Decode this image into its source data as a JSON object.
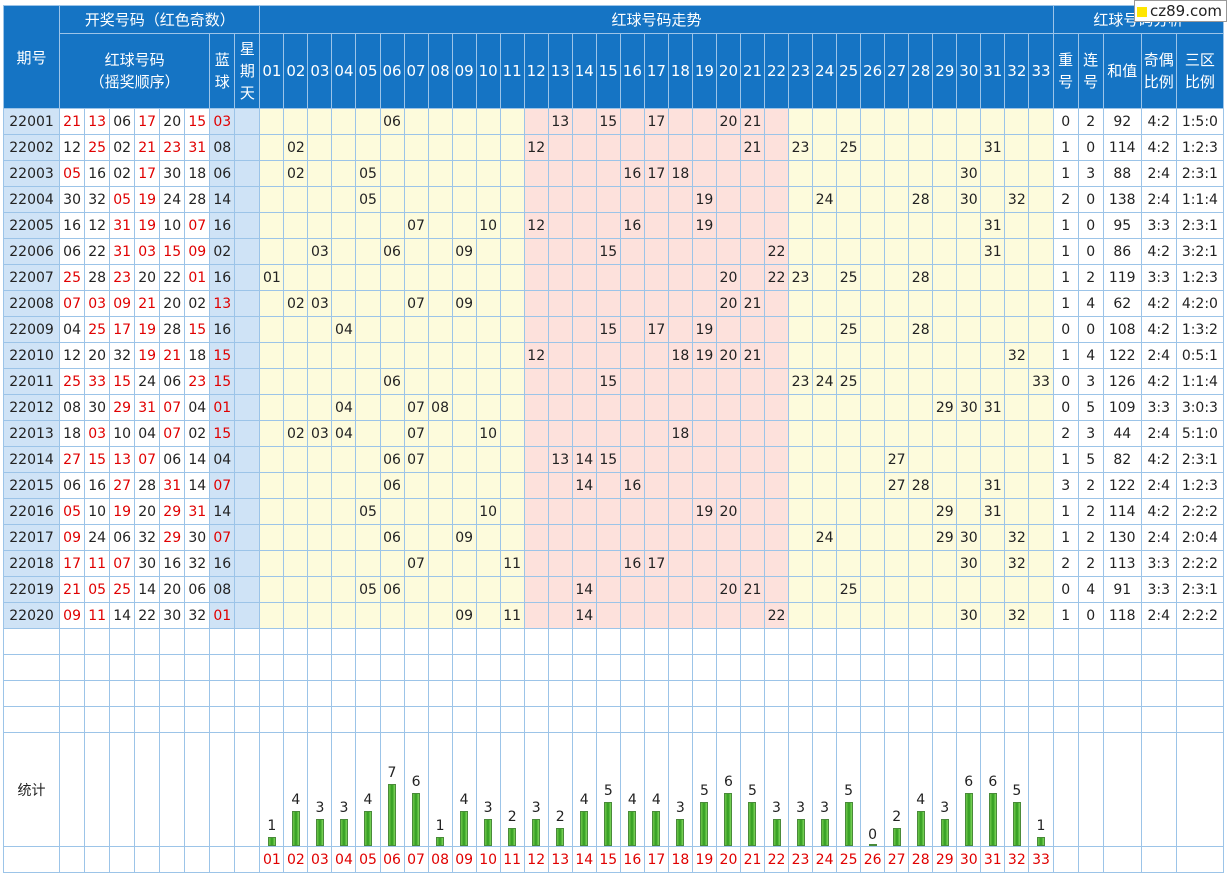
{
  "watermark": "cz89.com",
  "header": {
    "draw_group": "开奖号码（红色奇数）",
    "trend_group": "红球号码走势",
    "analysis_group": "红球号码分析",
    "period": "期号",
    "red_label_1": "红球号码",
    "red_label_2": "（摇奖顺序）",
    "blue_label_1": "蓝",
    "blue_label_2": "球",
    "week_1": "星",
    "week_2": "期",
    "week_3": "天",
    "repeat_1": "重",
    "repeat_2": "号",
    "consec_1": "连",
    "consec_2": "号",
    "sum": "和值",
    "oddeven_1": "奇偶",
    "oddeven_2": "比例",
    "zone_1": "三区",
    "zone_2": "比例",
    "numbers": [
      "01",
      "02",
      "03",
      "04",
      "05",
      "06",
      "07",
      "08",
      "09",
      "10",
      "11",
      "12",
      "13",
      "14",
      "15",
      "16",
      "17",
      "18",
      "19",
      "20",
      "21",
      "22",
      "23",
      "24",
      "25",
      "26",
      "27",
      "28",
      "29",
      "30",
      "31",
      "32",
      "33"
    ]
  },
  "rows": [
    {
      "period": "22001",
      "reds": [
        "21",
        "13",
        "06",
        "17",
        "20",
        "15"
      ],
      "blue": "03",
      "repeat": "0",
      "consec": "2",
      "sum": "92",
      "oddeven": "4:2",
      "zone": "1:5:0"
    },
    {
      "period": "22002",
      "reds": [
        "12",
        "25",
        "02",
        "21",
        "23",
        "31"
      ],
      "blue": "08",
      "repeat": "1",
      "consec": "0",
      "sum": "114",
      "oddeven": "4:2",
      "zone": "1:2:3"
    },
    {
      "period": "22003",
      "reds": [
        "05",
        "16",
        "02",
        "17",
        "30",
        "18"
      ],
      "blue": "06",
      "repeat": "1",
      "consec": "3",
      "sum": "88",
      "oddeven": "2:4",
      "zone": "2:3:1"
    },
    {
      "period": "22004",
      "reds": [
        "30",
        "32",
        "05",
        "19",
        "24",
        "28"
      ],
      "blue": "14",
      "repeat": "2",
      "consec": "0",
      "sum": "138",
      "oddeven": "2:4",
      "zone": "1:1:4"
    },
    {
      "period": "22005",
      "reds": [
        "16",
        "12",
        "31",
        "19",
        "10",
        "07"
      ],
      "blue": "16",
      "repeat": "1",
      "consec": "0",
      "sum": "95",
      "oddeven": "3:3",
      "zone": "2:3:1"
    },
    {
      "period": "22006",
      "reds": [
        "06",
        "22",
        "31",
        "03",
        "15",
        "09"
      ],
      "blue": "02",
      "repeat": "1",
      "consec": "0",
      "sum": "86",
      "oddeven": "4:2",
      "zone": "3:2:1"
    },
    {
      "period": "22007",
      "reds": [
        "25",
        "28",
        "23",
        "20",
        "22",
        "01"
      ],
      "blue": "16",
      "repeat": "1",
      "consec": "2",
      "sum": "119",
      "oddeven": "3:3",
      "zone": "1:2:3"
    },
    {
      "period": "22008",
      "reds": [
        "07",
        "03",
        "09",
        "21",
        "20",
        "02"
      ],
      "blue": "13",
      "repeat": "1",
      "consec": "4",
      "sum": "62",
      "oddeven": "4:2",
      "zone": "4:2:0"
    },
    {
      "period": "22009",
      "reds": [
        "04",
        "25",
        "17",
        "19",
        "28",
        "15"
      ],
      "blue": "16",
      "repeat": "0",
      "consec": "0",
      "sum": "108",
      "oddeven": "4:2",
      "zone": "1:3:2"
    },
    {
      "period": "22010",
      "reds": [
        "12",
        "20",
        "32",
        "19",
        "21",
        "18"
      ],
      "blue": "15",
      "repeat": "1",
      "consec": "4",
      "sum": "122",
      "oddeven": "2:4",
      "zone": "0:5:1"
    },
    {
      "period": "22011",
      "reds": [
        "25",
        "33",
        "15",
        "24",
        "06",
        "23"
      ],
      "blue": "15",
      "repeat": "0",
      "consec": "3",
      "sum": "126",
      "oddeven": "4:2",
      "zone": "1:1:4"
    },
    {
      "period": "22012",
      "reds": [
        "08",
        "30",
        "29",
        "31",
        "07",
        "04"
      ],
      "blue": "01",
      "repeat": "0",
      "consec": "5",
      "sum": "109",
      "oddeven": "3:3",
      "zone": "3:0:3"
    },
    {
      "period": "22013",
      "reds": [
        "18",
        "03",
        "10",
        "04",
        "07",
        "02"
      ],
      "blue": "15",
      "repeat": "2",
      "consec": "3",
      "sum": "44",
      "oddeven": "2:4",
      "zone": "5:1:0"
    },
    {
      "period": "22014",
      "reds": [
        "27",
        "15",
        "13",
        "07",
        "06",
        "14"
      ],
      "blue": "04",
      "repeat": "1",
      "consec": "5",
      "sum": "82",
      "oddeven": "4:2",
      "zone": "2:3:1"
    },
    {
      "period": "22015",
      "reds": [
        "06",
        "16",
        "27",
        "28",
        "31",
        "14"
      ],
      "blue": "07",
      "repeat": "3",
      "consec": "2",
      "sum": "122",
      "oddeven": "2:4",
      "zone": "1:2:3"
    },
    {
      "period": "22016",
      "reds": [
        "05",
        "10",
        "19",
        "20",
        "29",
        "31"
      ],
      "blue": "14",
      "repeat": "1",
      "consec": "2",
      "sum": "114",
      "oddeven": "4:2",
      "zone": "2:2:2"
    },
    {
      "period": "22017",
      "reds": [
        "09",
        "24",
        "06",
        "32",
        "29",
        "30"
      ],
      "blue": "07",
      "repeat": "1",
      "consec": "2",
      "sum": "130",
      "oddeven": "2:4",
      "zone": "2:0:4"
    },
    {
      "period": "22018",
      "reds": [
        "17",
        "11",
        "07",
        "30",
        "16",
        "32"
      ],
      "blue": "16",
      "repeat": "2",
      "consec": "2",
      "sum": "113",
      "oddeven": "3:3",
      "zone": "2:2:2"
    },
    {
      "period": "22019",
      "reds": [
        "21",
        "05",
        "25",
        "14",
        "20",
        "06"
      ],
      "blue": "08",
      "repeat": "0",
      "consec": "4",
      "sum": "91",
      "oddeven": "3:3",
      "zone": "2:3:1"
    },
    {
      "period": "22020",
      "reds": [
        "09",
        "11",
        "14",
        "22",
        "30",
        "32"
      ],
      "blue": "01",
      "repeat": "1",
      "consec": "0",
      "sum": "118",
      "oddeven": "2:4",
      "zone": "2:2:2"
    }
  ],
  "stats": {
    "label": "统计",
    "counts": [
      1,
      4,
      3,
      3,
      4,
      7,
      6,
      1,
      4,
      3,
      2,
      3,
      2,
      4,
      5,
      4,
      4,
      3,
      5,
      6,
      5,
      3,
      3,
      3,
      5,
      0,
      2,
      4,
      3,
      6,
      6,
      5,
      1
    ]
  }
}
